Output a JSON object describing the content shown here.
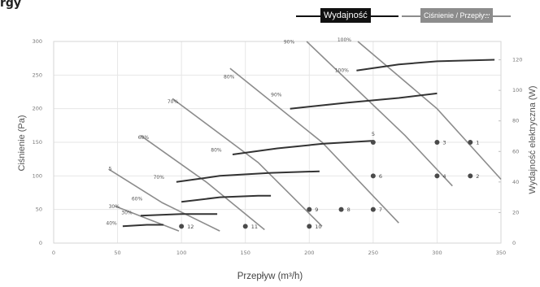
{
  "title_fragment": "rgy",
  "legend": {
    "primary": "Wydajność",
    "secondary": "Ciśnienie / Przepływ"
  },
  "colors": {
    "primary_curve": "#333333",
    "secondary_curve": "#8c8c8c",
    "grid": "#e6e6e6",
    "axis_text": "#777777",
    "marker": "#4a4a4a"
  },
  "chart_data": {
    "type": "line",
    "xlabel": "Przepływ (m³/h)",
    "ylabel_left": "Ciśnienie (Pa)",
    "ylabel_right": "Wydajność elektryczna (W)",
    "xlim": [
      0,
      350
    ],
    "ylim_left": [
      0,
      300
    ],
    "ylim_right": [
      0,
      132
    ],
    "x_ticks": [
      0,
      50,
      100,
      150,
      200,
      250,
      300,
      350
    ],
    "y_left_ticks": [
      0,
      50,
      100,
      150,
      200,
      250,
      300
    ],
    "y_right_ticks": [
      0,
      20,
      40,
      60,
      80,
      100,
      120
    ],
    "grid": true,
    "pressure_flow_curves": [
      {
        "label": "100%",
        "points": [
          [
            238,
            300
          ],
          [
            300,
            200
          ],
          [
            350,
            95
          ]
        ]
      },
      {
        "label": "90%",
        "points": [
          [
            198,
            300
          ],
          [
            275,
            160
          ],
          [
            312,
            85
          ]
        ]
      },
      {
        "label": "80%",
        "points": [
          [
            138,
            260
          ],
          [
            210,
            150
          ],
          [
            270,
            30
          ]
        ]
      },
      {
        "label": "70%",
        "points": [
          [
            93,
            215
          ],
          [
            160,
            120
          ],
          [
            210,
            25
          ]
        ]
      },
      {
        "label": "60%",
        "points": [
          [
            68,
            160
          ],
          [
            120,
            90
          ],
          [
            165,
            20
          ]
        ]
      },
      {
        "label": "5",
        "points": [
          [
            43,
            110
          ],
          [
            85,
            60
          ],
          [
            130,
            18
          ]
        ]
      },
      {
        "label": "30%",
        "points": [
          [
            48,
            55
          ],
          [
            75,
            35
          ],
          [
            98,
            18
          ]
        ]
      }
    ],
    "power_curves": [
      {
        "label": "100%",
        "points": [
          [
            237,
            113
          ],
          [
            270,
            117
          ],
          [
            300,
            119
          ],
          [
            345,
            120
          ]
        ]
      },
      {
        "label": "90%",
        "points": [
          [
            185,
            88
          ],
          [
            230,
            92
          ],
          [
            270,
            95
          ],
          [
            300,
            98
          ]
        ]
      },
      {
        "label": "80%",
        "points": [
          [
            140,
            58
          ],
          [
            175,
            62
          ],
          [
            210,
            65
          ],
          [
            250,
            67
          ]
        ]
      },
      {
        "label": "70%",
        "points": [
          [
            96,
            40
          ],
          [
            130,
            44
          ],
          [
            170,
            46
          ],
          [
            208,
            47
          ]
        ]
      },
      {
        "label": "60%",
        "points": [
          [
            100,
            27
          ],
          [
            130,
            30
          ],
          [
            160,
            31
          ],
          [
            170,
            31
          ]
        ]
      },
      {
        "label": "30%",
        "points": [
          [
            68,
            18
          ],
          [
            100,
            19
          ],
          [
            128,
            19
          ]
        ]
      },
      {
        "label": "40%",
        "points": [
          [
            54,
            11
          ],
          [
            73,
            12
          ],
          [
            86,
            12
          ]
        ]
      }
    ],
    "curve_labels": [
      {
        "text": "100%",
        "x": 222,
        "y": 300,
        "series": "pressure"
      },
      {
        "text": "90%",
        "x": 180,
        "y": 297,
        "series": "pressure"
      },
      {
        "text": "80%",
        "x": 133,
        "y": 245,
        "series": "pressure"
      },
      {
        "text": "70%",
        "x": 89,
        "y": 208,
        "series": "pressure"
      },
      {
        "text": "60%",
        "x": 66,
        "y": 155,
        "series": "pressure"
      },
      {
        "text": "5",
        "x": 43,
        "y": 108,
        "series": "pressure"
      },
      {
        "text": "30%",
        "x": 43,
        "y": 52,
        "series": "pressure"
      },
      {
        "text": "100%",
        "x": 220,
        "y": 112,
        "series": "power"
      },
      {
        "text": "90%",
        "x": 170,
        "y": 96,
        "series": "power"
      },
      {
        "text": "80%",
        "x": 123,
        "y": 60,
        "series": "power"
      },
      {
        "text": "70%",
        "x": 78,
        "y": 42,
        "series": "power"
      },
      {
        "text": "60%",
        "x": 61,
        "y": 28,
        "series": "power"
      },
      {
        "text": "30%",
        "x": 53,
        "y": 19,
        "series": "power"
      },
      {
        "text": "40%",
        "x": 41,
        "y": 12,
        "series": "power"
      }
    ],
    "operating_points": [
      {
        "id": "1",
        "x": 326,
        "y": 150
      },
      {
        "id": "2",
        "x": 326,
        "y": 100
      },
      {
        "id": "3",
        "x": 300,
        "y": 150
      },
      {
        "id": "4",
        "x": 300,
        "y": 100
      },
      {
        "id": "5",
        "x": 250,
        "y": 150,
        "label_above": true
      },
      {
        "id": "6",
        "x": 250,
        "y": 100
      },
      {
        "id": "7",
        "x": 250,
        "y": 50
      },
      {
        "id": "8",
        "x": 225,
        "y": 50
      },
      {
        "id": "9",
        "x": 200,
        "y": 50
      },
      {
        "id": "10",
        "x": 200,
        "y": 25
      },
      {
        "id": "11",
        "x": 150,
        "y": 25
      },
      {
        "id": "12",
        "x": 100,
        "y": 25
      }
    ]
  }
}
